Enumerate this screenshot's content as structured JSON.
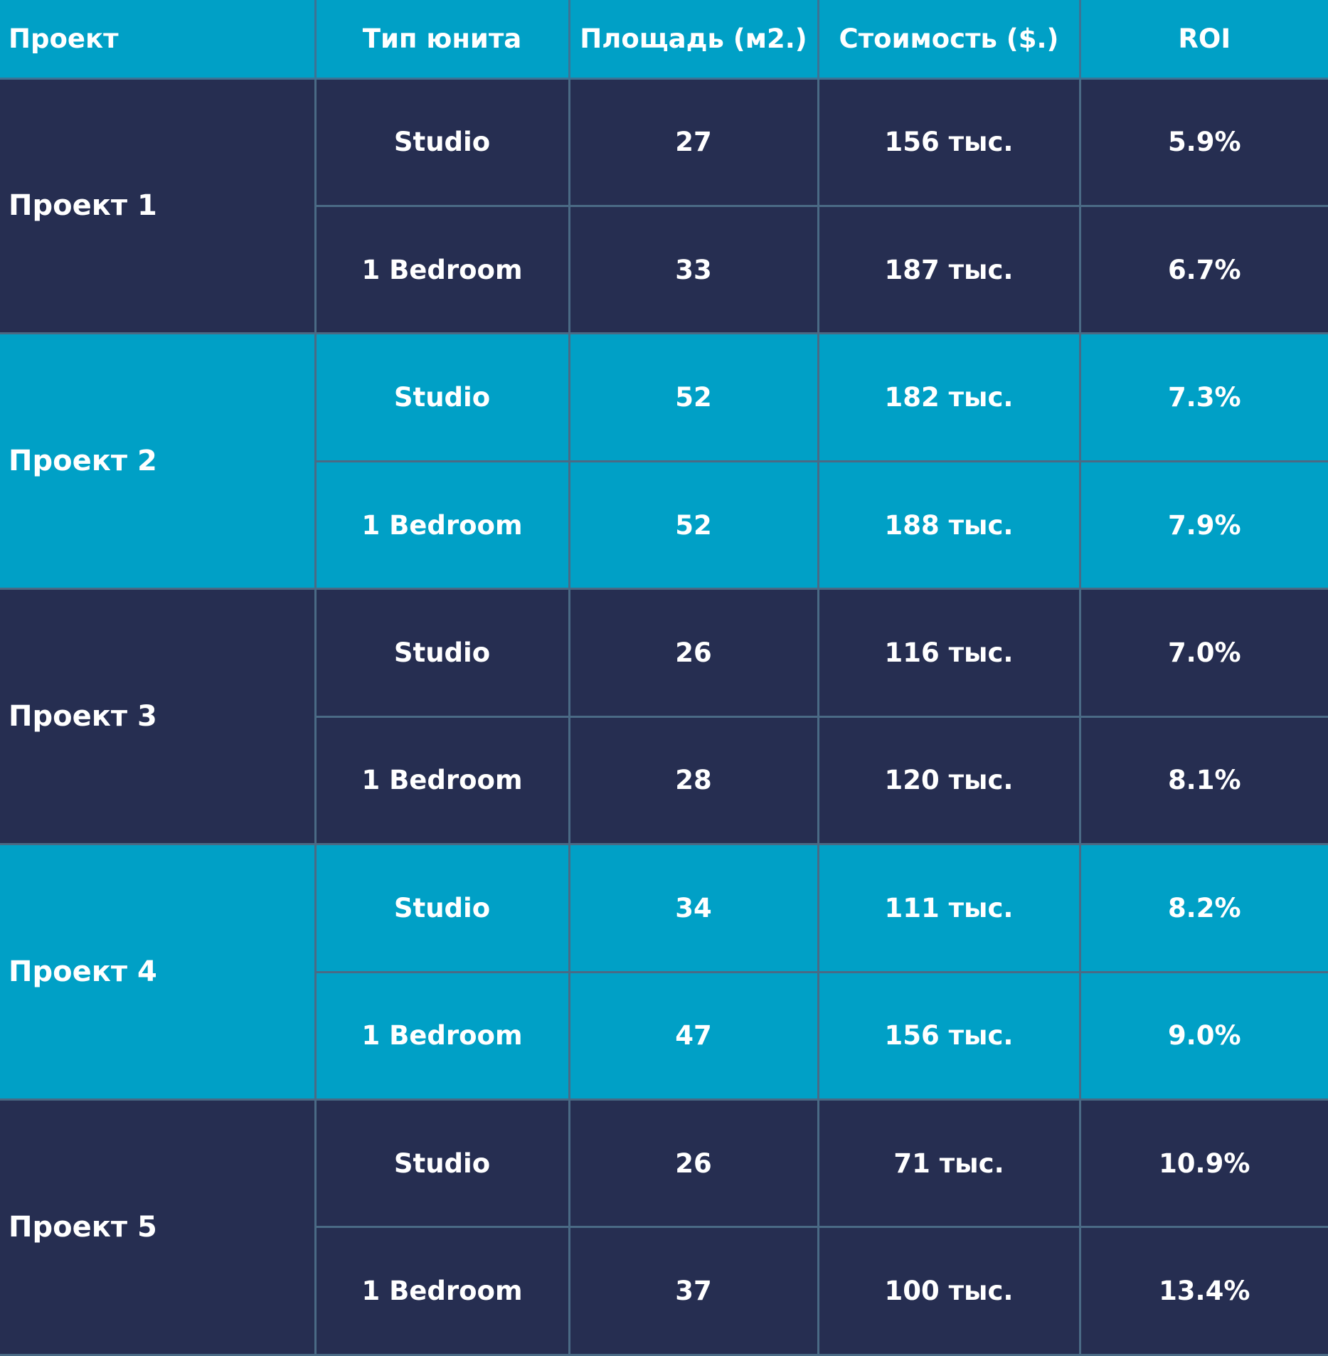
{
  "table": {
    "headers": [
      "Проект",
      "Тип юнита",
      "Площадь (м2.)",
      "Стоимость ($.)",
      "ROI"
    ],
    "colors": {
      "dark_row": "#262e51",
      "light_row": "#00a0c6",
      "header": "#00a0c6",
      "grid": "#4a6a85",
      "text": "#ffffff"
    },
    "projects": [
      {
        "name": "Проект 1",
        "units": [
          {
            "type": "Studio",
            "area": "27",
            "cost": "156 тыс.",
            "roi": "5.9%"
          },
          {
            "type": "1 Bedroom",
            "area": "33",
            "cost": "187 тыс.",
            "roi": "6.7%"
          }
        ]
      },
      {
        "name": "Проект 2",
        "units": [
          {
            "type": "Studio",
            "area": "52",
            "cost": "182 тыс.",
            "roi": "7.3%"
          },
          {
            "type": "1 Bedroom",
            "area": "52",
            "cost": "188 тыс.",
            "roi": "7.9%"
          }
        ]
      },
      {
        "name": "Проект 3",
        "units": [
          {
            "type": "Studio",
            "area": "26",
            "cost": "116 тыс.",
            "roi": "7.0%"
          },
          {
            "type": "1 Bedroom",
            "area": "28",
            "cost": "120 тыс.",
            "roi": "8.1%"
          }
        ]
      },
      {
        "name": "Проект 4",
        "units": [
          {
            "type": "Studio",
            "area": "34",
            "cost": "111 тыс.",
            "roi": "8.2%"
          },
          {
            "type": "1 Bedroom",
            "area": "47",
            "cost": "156 тыс.",
            "roi": "9.0%"
          }
        ]
      },
      {
        "name": "Проект 5",
        "units": [
          {
            "type": "Studio",
            "area": "26",
            "cost": "71 тыс.",
            "roi": "10.9%"
          },
          {
            "type": "1 Bedroom",
            "area": "37",
            "cost": "100 тыс.",
            "roi": "13.4%"
          }
        ]
      }
    ]
  }
}
